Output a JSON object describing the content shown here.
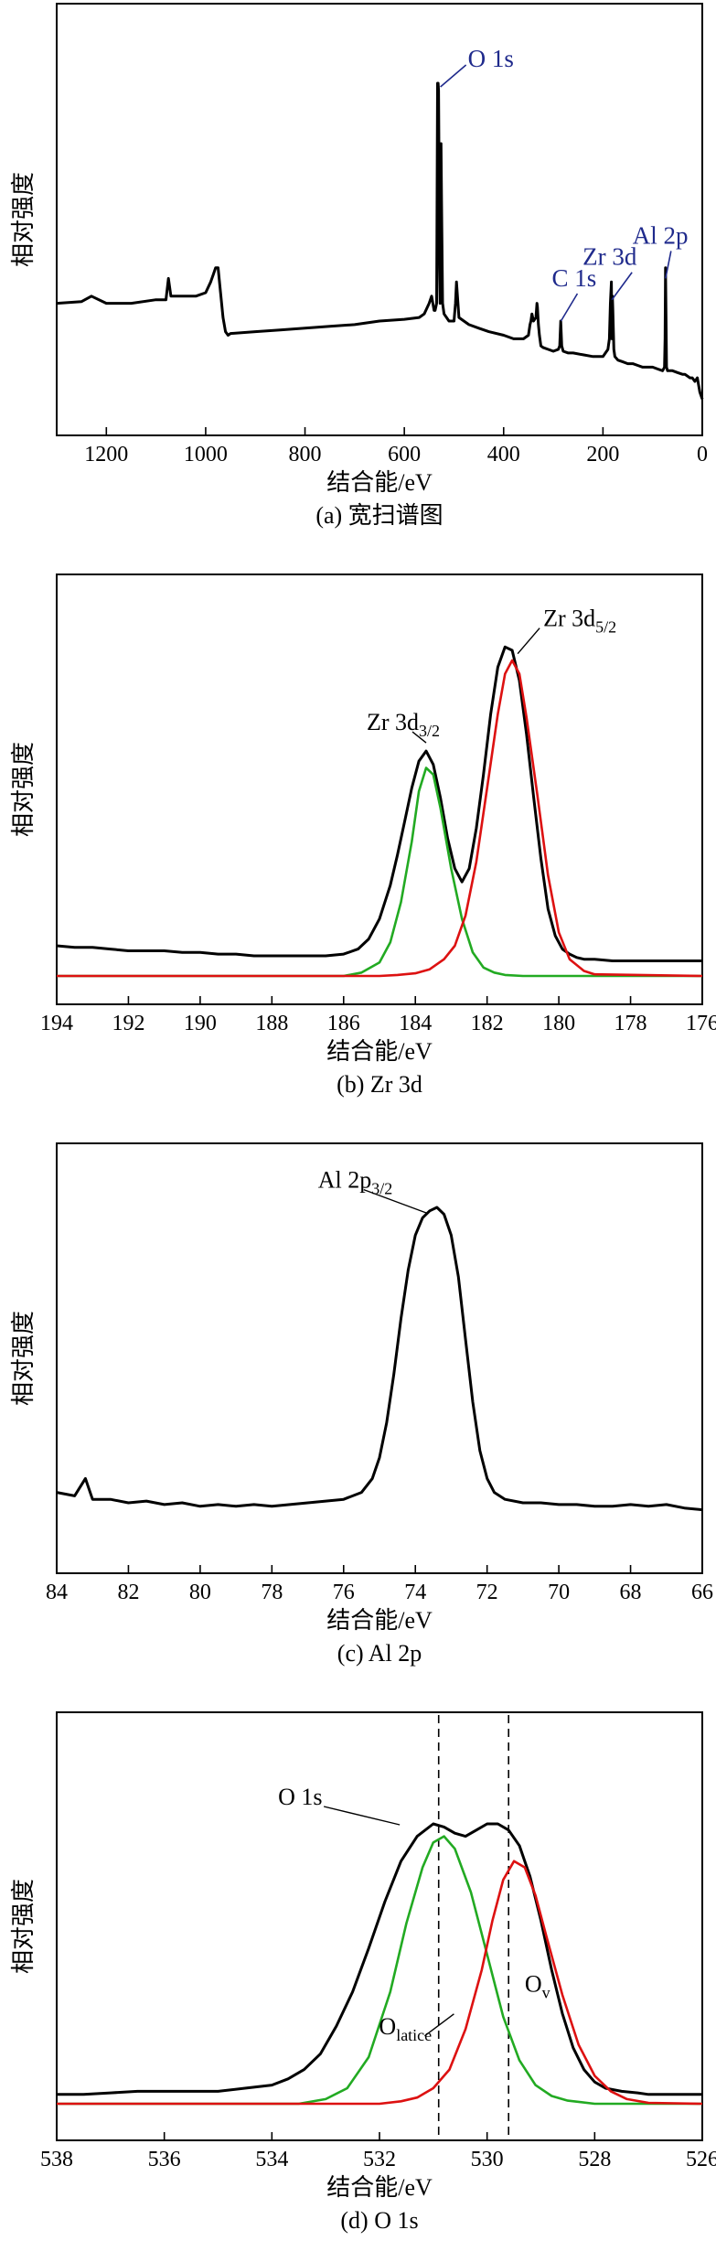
{
  "ylabel": "相对强度",
  "xlabel": "结合能/eV",
  "colors": {
    "curve": "#000000",
    "fit_green": "#22aa22",
    "fit_red": "#dd1111",
    "annotation_blue": "#1f2a8c"
  },
  "chart_data": [
    {
      "id": "a",
      "type": "line",
      "caption": "(a) 宽扫谱图",
      "xlabel": "结合能/eV",
      "ylabel": "相对强度",
      "xlim": [
        1300,
        0
      ],
      "ylim": [
        0,
        100
      ],
      "xticks": [
        1200,
        1000,
        800,
        600,
        400,
        200,
        0
      ],
      "annotations": [
        {
          "text": "O 1s",
          "x": 531,
          "y": 92
        },
        {
          "text": "C 1s",
          "x": 284.6,
          "y": 25
        },
        {
          "text": "Zr 3d",
          "x": 182,
          "y": 31
        },
        {
          "text": "Al 2p",
          "x": 74,
          "y": 37
        }
      ],
      "series": [
        {
          "x": [
            1300,
            1250,
            1230,
            1200,
            1150,
            1100,
            1080,
            1075,
            1070,
            1050,
            1020,
            1000,
            990,
            985,
            980,
            975,
            970,
            965,
            960,
            955,
            950,
            900,
            850,
            800,
            750,
            700,
            650,
            600,
            570,
            560,
            550,
            545,
            540,
            538,
            535,
            533,
            532,
            531,
            530,
            529,
            528,
            527,
            526,
            525,
            523,
            520,
            510,
            500,
            497,
            495,
            490,
            480,
            470,
            450,
            430,
            400,
            380,
            360,
            350,
            347,
            345,
            343,
            340,
            335,
            333,
            332,
            330,
            328,
            325,
            320,
            310,
            300,
            290,
            287,
            285,
            283,
            280,
            270,
            260,
            240,
            220,
            200,
            195,
            190,
            187,
            185,
            183,
            182,
            181,
            180,
            178,
            176,
            170,
            160,
            150,
            140,
            130,
            120,
            110,
            100,
            90,
            80,
            76,
            75,
            74,
            73,
            72,
            70,
            60,
            50,
            40,
            35,
            30,
            25,
            20,
            15,
            10,
            5,
            0
          ],
          "y": [
            30,
            30.5,
            32,
            30,
            30,
            31,
            31,
            37,
            32,
            32,
            32,
            33,
            36,
            38,
            40,
            40,
            33,
            26,
            22,
            21,
            21.5,
            22,
            22.5,
            23,
            23.5,
            24,
            25,
            25.5,
            26,
            27,
            30,
            32,
            28,
            28,
            30,
            92,
            92,
            90,
            65,
            40,
            30,
            50,
            75,
            58,
            30,
            27,
            25,
            25,
            30,
            36,
            26,
            25,
            24,
            23,
            22,
            21,
            20,
            20,
            21,
            24,
            25,
            27,
            25,
            26,
            30,
            29,
            24,
            21,
            18,
            17.5,
            17,
            16.5,
            17,
            18,
            25,
            18,
            16.5,
            16,
            16,
            15.5,
            15,
            15,
            16,
            17,
            20,
            30,
            36,
            20,
            32,
            28,
            17,
            15,
            14,
            13.5,
            13,
            13,
            12.5,
            12,
            12,
            12,
            11.5,
            11,
            12,
            20,
            40,
            25,
            12,
            11,
            11,
            10.5,
            10,
            10,
            9.5,
            9,
            9,
            8,
            9,
            5,
            3
          ]
        }
      ]
    },
    {
      "id": "b",
      "type": "line",
      "caption": "(b) Zr 3d",
      "xlabel": "结合能/eV",
      "ylabel": "相对强度",
      "xlim": [
        194,
        176
      ],
      "ylim": [
        0,
        100
      ],
      "xticks": [
        194,
        192,
        190,
        188,
        186,
        184,
        182,
        180,
        178,
        176
      ],
      "annotations": [
        {
          "text": "Zr 3d",
          "sub": "3/2",
          "x": 183.7,
          "y": 70
        },
        {
          "text": "Zr 3d",
          "sub": "5/2",
          "x": 181.3,
          "y": 102
        }
      ],
      "series": [
        {
          "name": "",
          "color": "#000000",
          "x": [
            194,
            193.5,
            193,
            192.5,
            192,
            191.5,
            191,
            190.5,
            190,
            189.5,
            189,
            188.5,
            188,
            187.5,
            187,
            186.5,
            186,
            185.6,
            185.3,
            185,
            184.7,
            184.5,
            184.3,
            184.1,
            183.9,
            183.7,
            183.5,
            183.3,
            183.1,
            182.9,
            182.7,
            182.5,
            182.3,
            182.1,
            181.9,
            181.7,
            181.5,
            181.3,
            181.1,
            180.9,
            180.7,
            180.5,
            180.3,
            180.1,
            179.9,
            179.7,
            179.5,
            179.3,
            179,
            178.5,
            178,
            177.5,
            177,
            176.5,
            176
          ],
          "y": [
            9,
            8.5,
            8.5,
            8,
            7.5,
            7.5,
            7.5,
            7,
            7,
            6.5,
            6.5,
            6,
            6,
            6,
            6,
            6,
            6.5,
            8,
            11,
            17,
            27,
            36,
            46,
            56,
            64,
            67,
            63,
            53,
            41,
            32,
            28,
            32,
            44,
            60,
            78,
            92,
            98,
            97,
            88,
            72,
            53,
            35,
            20,
            12,
            8,
            6.5,
            5.5,
            5,
            5,
            4.5,
            4.5,
            4.5,
            4.5,
            4.5,
            4.5
          ]
        },
        {
          "name": "",
          "color": "#22aa22",
          "x": [
            194,
            186,
            185.5,
            185,
            184.7,
            184.4,
            184.1,
            183.9,
            183.7,
            183.5,
            183.3,
            183,
            182.7,
            182.4,
            182.1,
            181.8,
            181.5,
            181,
            176
          ],
          "y": [
            0,
            0,
            1,
            4,
            10,
            22,
            40,
            55,
            62,
            60,
            50,
            32,
            17,
            7,
            2.5,
            1,
            0.3,
            0,
            0
          ]
        },
        {
          "name": "",
          "color": "#dd1111",
          "x": [
            194,
            185,
            184.5,
            184,
            183.6,
            183.2,
            182.9,
            182.6,
            182.3,
            182,
            181.7,
            181.5,
            181.3,
            181.1,
            180.9,
            180.6,
            180.3,
            180,
            179.7,
            179.3,
            179,
            176
          ],
          "y": [
            0,
            0,
            0.3,
            0.8,
            2,
            5,
            9,
            18,
            34,
            56,
            78,
            90,
            94,
            90,
            77,
            54,
            30,
            13,
            5,
            1.5,
            0.5,
            0
          ]
        }
      ]
    },
    {
      "id": "c",
      "type": "line",
      "caption": "(c) Al 2p",
      "xlabel": "结合能/eV",
      "ylabel": "相对强度",
      "xlim": [
        84,
        66
      ],
      "ylim": [
        0,
        100
      ],
      "xticks": [
        84,
        82,
        80,
        78,
        76,
        74,
        72,
        70,
        68,
        66
      ],
      "annotations": [
        {
          "text": "Al 2p",
          "sub": "3/2",
          "x": 73.4,
          "y": 103
        }
      ],
      "series": [
        {
          "x": [
            84,
            83.5,
            83.2,
            83,
            82.5,
            82,
            81.5,
            81,
            80.5,
            80,
            79.5,
            79,
            78.5,
            78,
            77.5,
            77,
            76.5,
            76,
            75.5,
            75.2,
            75,
            74.8,
            74.6,
            74.4,
            74.2,
            74,
            73.8,
            73.6,
            73.4,
            73.2,
            73,
            72.8,
            72.6,
            72.4,
            72.2,
            72,
            71.8,
            71.5,
            71,
            70.5,
            70,
            69.5,
            69,
            68.5,
            68,
            67.5,
            67,
            66.5,
            66
          ],
          "y": [
            18,
            17,
            22,
            16,
            16,
            15,
            15.5,
            14.5,
            15,
            14,
            14.5,
            14,
            14.5,
            14,
            14.5,
            15,
            15.5,
            16,
            18,
            22,
            28,
            38,
            52,
            68,
            82,
            92,
            97,
            99,
            100,
            98,
            92,
            80,
            62,
            44,
            30,
            22,
            18,
            16,
            15,
            15,
            14.5,
            14.5,
            14,
            14,
            14.5,
            14,
            14.5,
            13.5,
            13
          ]
        }
      ]
    },
    {
      "id": "d",
      "type": "line",
      "caption": "(d) O 1s",
      "xlabel": "结合能/eV",
      "ylabel": "相对强度",
      "xlim": [
        538,
        526
      ],
      "ylim": [
        0,
        100
      ],
      "xticks": [
        538,
        536,
        534,
        532,
        530,
        528,
        526
      ],
      "vlines": [
        530.9,
        529.6
      ],
      "annotations": [
        {
          "text": "O 1s",
          "x": 532.1,
          "y": 95
        },
        {
          "text": "O",
          "sub": "latice",
          "x": 531.5,
          "y": 23
        },
        {
          "text": "O",
          "sub": "v",
          "x": 529.3,
          "y": 36
        }
      ],
      "series": [
        {
          "name": "",
          "color": "#000000",
          "x": [
            538,
            537.5,
            537,
            536.5,
            536,
            535.5,
            535,
            534.5,
            534,
            533.7,
            533.4,
            533.1,
            532.8,
            532.5,
            532.2,
            531.9,
            531.6,
            531.3,
            531,
            530.8,
            530.6,
            530.4,
            530.2,
            530,
            529.8,
            529.6,
            529.4,
            529.2,
            529,
            528.8,
            528.6,
            528.4,
            528.2,
            528,
            527.8,
            527.5,
            527.2,
            527,
            526.5,
            526
          ],
          "y": [
            3,
            3,
            3.5,
            4,
            4,
            4,
            4,
            5,
            6,
            8,
            11,
            16,
            25,
            36,
            50,
            65,
            78,
            86,
            90,
            89,
            87,
            86,
            88,
            90,
            90,
            88,
            83,
            73,
            59,
            43,
            29,
            18,
            11,
            7,
            5,
            4,
            3.5,
            3,
            3,
            3
          ]
        },
        {
          "name": "",
          "color": "#22aa22",
          "x": [
            538,
            533.5,
            533,
            532.6,
            532.2,
            531.8,
            531.5,
            531.2,
            531,
            530.8,
            530.6,
            530.3,
            530,
            529.7,
            529.4,
            529.1,
            528.8,
            528.5,
            528,
            526
          ],
          "y": [
            0,
            0,
            1.5,
            5,
            15,
            36,
            58,
            76,
            84,
            86,
            82,
            68,
            48,
            28,
            14,
            6,
            2.5,
            1,
            0,
            0
          ]
        },
        {
          "name": "",
          "color": "#dd1111",
          "x": [
            538,
            532,
            531.6,
            531.3,
            531,
            530.7,
            530.4,
            530.1,
            529.9,
            529.7,
            529.5,
            529.3,
            529.1,
            528.9,
            528.6,
            528.3,
            528,
            527.7,
            527.4,
            527,
            526
          ],
          "y": [
            0,
            0,
            0.8,
            2,
            5,
            11,
            24,
            43,
            59,
            72,
            78,
            76,
            67,
            54,
            35,
            19,
            9,
            4,
            1.5,
            0.3,
            0
          ]
        }
      ]
    }
  ]
}
